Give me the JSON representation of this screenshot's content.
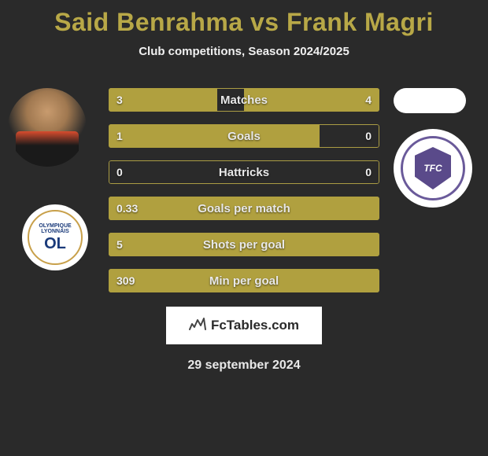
{
  "title": "Said Benrahma vs Frank Magri",
  "subtitle": "Club competitions, Season 2024/2025",
  "footer_brand": "FcTables.com",
  "footer_date": "29 september 2024",
  "colors": {
    "background": "#2a2a2a",
    "accent": "#b8a847",
    "bar_fill": "#b0a03f",
    "text_light": "#f0f0f0"
  },
  "player_left": {
    "name": "Said Benrahma",
    "club": "Olympique Lyonnais",
    "club_abbrev": "OL"
  },
  "player_right": {
    "name": "Frank Magri",
    "club": "Toulouse FC",
    "club_abbrev": "TFC"
  },
  "stats": [
    {
      "label": "Matches",
      "left_val": "3",
      "right_val": "4",
      "left_pct": 40,
      "right_pct": 50
    },
    {
      "label": "Goals",
      "left_val": "1",
      "right_val": "0",
      "left_pct": 78,
      "right_pct": 0
    },
    {
      "label": "Hattricks",
      "left_val": "0",
      "right_val": "0",
      "left_pct": 0,
      "right_pct": 0
    },
    {
      "label": "Goals per match",
      "left_val": "0.33",
      "right_val": "",
      "left_pct": 100,
      "right_pct": 0
    },
    {
      "label": "Shots per goal",
      "left_val": "5",
      "right_val": "",
      "left_pct": 100,
      "right_pct": 0
    },
    {
      "label": "Min per goal",
      "left_val": "309",
      "right_val": "",
      "left_pct": 100,
      "right_pct": 0
    }
  ]
}
